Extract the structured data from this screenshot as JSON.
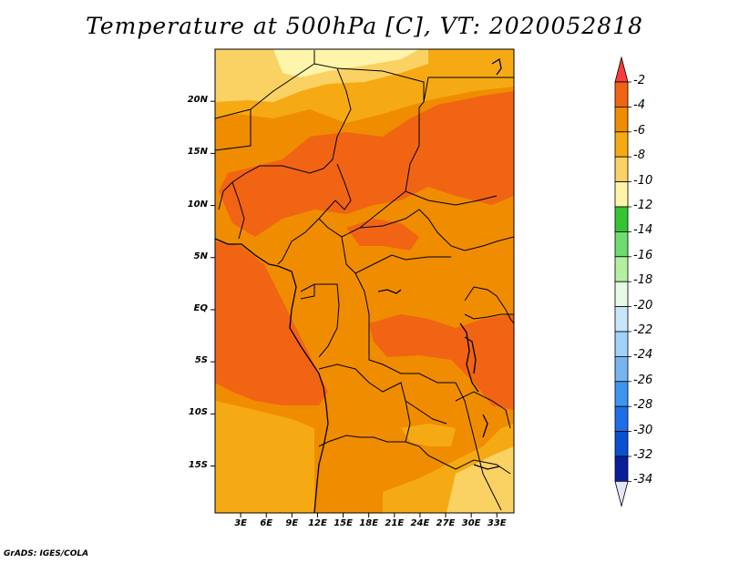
{
  "title": "Temperature at 500hPa [C], VT: 2020052818",
  "credit": "GrADS: IGES/COLA",
  "map": {
    "lat_ticks": [
      "20N",
      "15N",
      "10N",
      "5N",
      "EQ",
      "5S",
      "10S",
      "15S"
    ],
    "lon_ticks": [
      "3E",
      "6E",
      "9E",
      "12E",
      "15E",
      "18E",
      "21E",
      "24E",
      "27E",
      "30E",
      "33E"
    ],
    "lat_values": [
      20,
      15,
      10,
      5,
      0,
      -5,
      -10,
      -15
    ],
    "lon_values": [
      3,
      6,
      9,
      12,
      15,
      18,
      21,
      24,
      27,
      30,
      33
    ],
    "lon_range": [
      0,
      35
    ],
    "lat_range": [
      -19.5,
      25
    ]
  },
  "colorbar": {
    "labels": [
      "-2",
      "-4",
      "-6",
      "-8",
      "-10",
      "-12",
      "-14",
      "-16",
      "-18",
      "-20",
      "-22",
      "-24",
      "-26",
      "-28",
      "-30",
      "-32",
      "-34"
    ],
    "colors": [
      "#fa3c3c",
      "#f06414",
      "#f08c00",
      "#f5aa14",
      "#fad264",
      "#fff5aa",
      "#34c434",
      "#6edc6e",
      "#b4f0a0",
      "#e6fae6",
      "#c8e6fa",
      "#a0d2fa",
      "#78b4f0",
      "#3c96f0",
      "#1e6ee6",
      "#0a50d2",
      "#0a1e9c",
      "#e6e6fa"
    ],
    "units": "C"
  }
}
